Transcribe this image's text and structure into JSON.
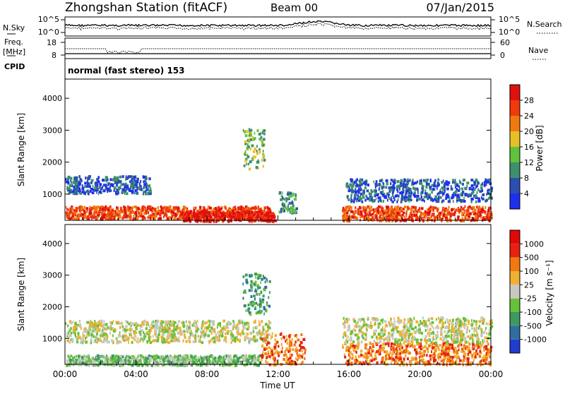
{
  "header": {
    "station": "Zhongshan Station (fitACF)",
    "beam": "Beam 00",
    "date": "07/Jan/2015"
  },
  "noise_panel": {
    "left_label": "N.Sky",
    "right_label": "N.Search",
    "left_ticks": [
      "10^5",
      "10^0"
    ],
    "right_ticks": [
      "10^5",
      "10^0"
    ]
  },
  "freq_panel": {
    "left_label_1": "Freq.",
    "left_label_2": "[MHz]",
    "right_label": "Nave",
    "left_ticks": [
      "18",
      "8"
    ],
    "right_ticks": [
      "60",
      "0"
    ]
  },
  "cpid": {
    "label": "CPID",
    "text": "normal (fast stereo) 153"
  },
  "x_axis": {
    "label": "Time UT",
    "ticks": [
      "00:00",
      "04:00",
      "08:00",
      "12:00",
      "16:00",
      "20:00",
      "00:00"
    ]
  },
  "chart_data": [
    {
      "type": "heatmap",
      "quantity": "Power",
      "xlabel": "Time UT",
      "ylabel": "Slant Range [km]",
      "x_ticks": [
        "00:00",
        "04:00",
        "08:00",
        "12:00",
        "16:00",
        "20:00",
        "00:00"
      ],
      "xlim_hours": [
        0,
        24
      ],
      "ylim": [
        180,
        4600
      ],
      "y_ticks": [
        1000,
        2000,
        3000,
        4000
      ],
      "colorbar": {
        "label": "Power [dB]",
        "ticks": [
          "4",
          "8",
          "12",
          "16",
          "20",
          "24",
          "28"
        ],
        "colors": [
          "#1f2ff0",
          "#2a4fb0",
          "#3e8f6e",
          "#5fc23a",
          "#e6c024",
          "#f07a10",
          "#f03a0a",
          "#e01010"
        ]
      },
      "echo_regions": [
        {
          "t": [
            0.0,
            4.8
          ],
          "range": [
            1050,
            1600
          ],
          "level": 1
        },
        {
          "t": [
            0.0,
            11.5
          ],
          "range": [
            250,
            650
          ],
          "level": 6
        },
        {
          "t": [
            6.5,
            11.8
          ],
          "range": [
            180,
            500
          ],
          "level": 7
        },
        {
          "t": [
            10.0,
            11.2
          ],
          "range": [
            1800,
            3100
          ],
          "level": 3
        },
        {
          "t": [
            12.0,
            13.0
          ],
          "range": [
            450,
            1100
          ],
          "level": 2
        },
        {
          "t": [
            15.6,
            24.0
          ],
          "range": [
            200,
            650
          ],
          "level": 6
        },
        {
          "t": [
            15.8,
            24.0
          ],
          "range": [
            800,
            1500
          ],
          "level": 1
        }
      ]
    },
    {
      "type": "heatmap",
      "quantity": "Velocity",
      "xlabel": "Time UT",
      "ylabel": "Slant Range [km]",
      "x_ticks": [
        "00:00",
        "04:00",
        "08:00",
        "12:00",
        "16:00",
        "20:00",
        "00:00"
      ],
      "xlim_hours": [
        0,
        24
      ],
      "ylim": [
        180,
        4600
      ],
      "y_ticks": [
        1000,
        2000,
        3000,
        4000
      ],
      "colorbar": {
        "label": "Velocity [m s⁻¹]",
        "ticks": [
          "1000",
          "500",
          "100",
          "25",
          "-25",
          "-100",
          "-500",
          "-1000"
        ],
        "colors": [
          "#1f3ecf",
          "#2f6fa0",
          "#3c9a60",
          "#66c23a",
          "#c8c8c0",
          "#f0b030",
          "#f07a10",
          "#e82010",
          "#e00808"
        ]
      },
      "echo_regions": [
        {
          "t": [
            0.0,
            11.5
          ],
          "range": [
            900,
            1600
          ],
          "level": 4
        },
        {
          "t": [
            0.0,
            11.0
          ],
          "range": [
            180,
            500
          ],
          "level": 3
        },
        {
          "t": [
            10.0,
            11.5
          ],
          "range": [
            1800,
            3100
          ],
          "level": 2
        },
        {
          "t": [
            11.0,
            13.5
          ],
          "range": [
            200,
            1200
          ],
          "level": 6
        },
        {
          "t": [
            15.6,
            24.0
          ],
          "range": [
            200,
            900
          ],
          "level": 6
        },
        {
          "t": [
            15.6,
            24.0
          ],
          "range": [
            900,
            1700
          ],
          "level": 4
        }
      ]
    }
  ]
}
